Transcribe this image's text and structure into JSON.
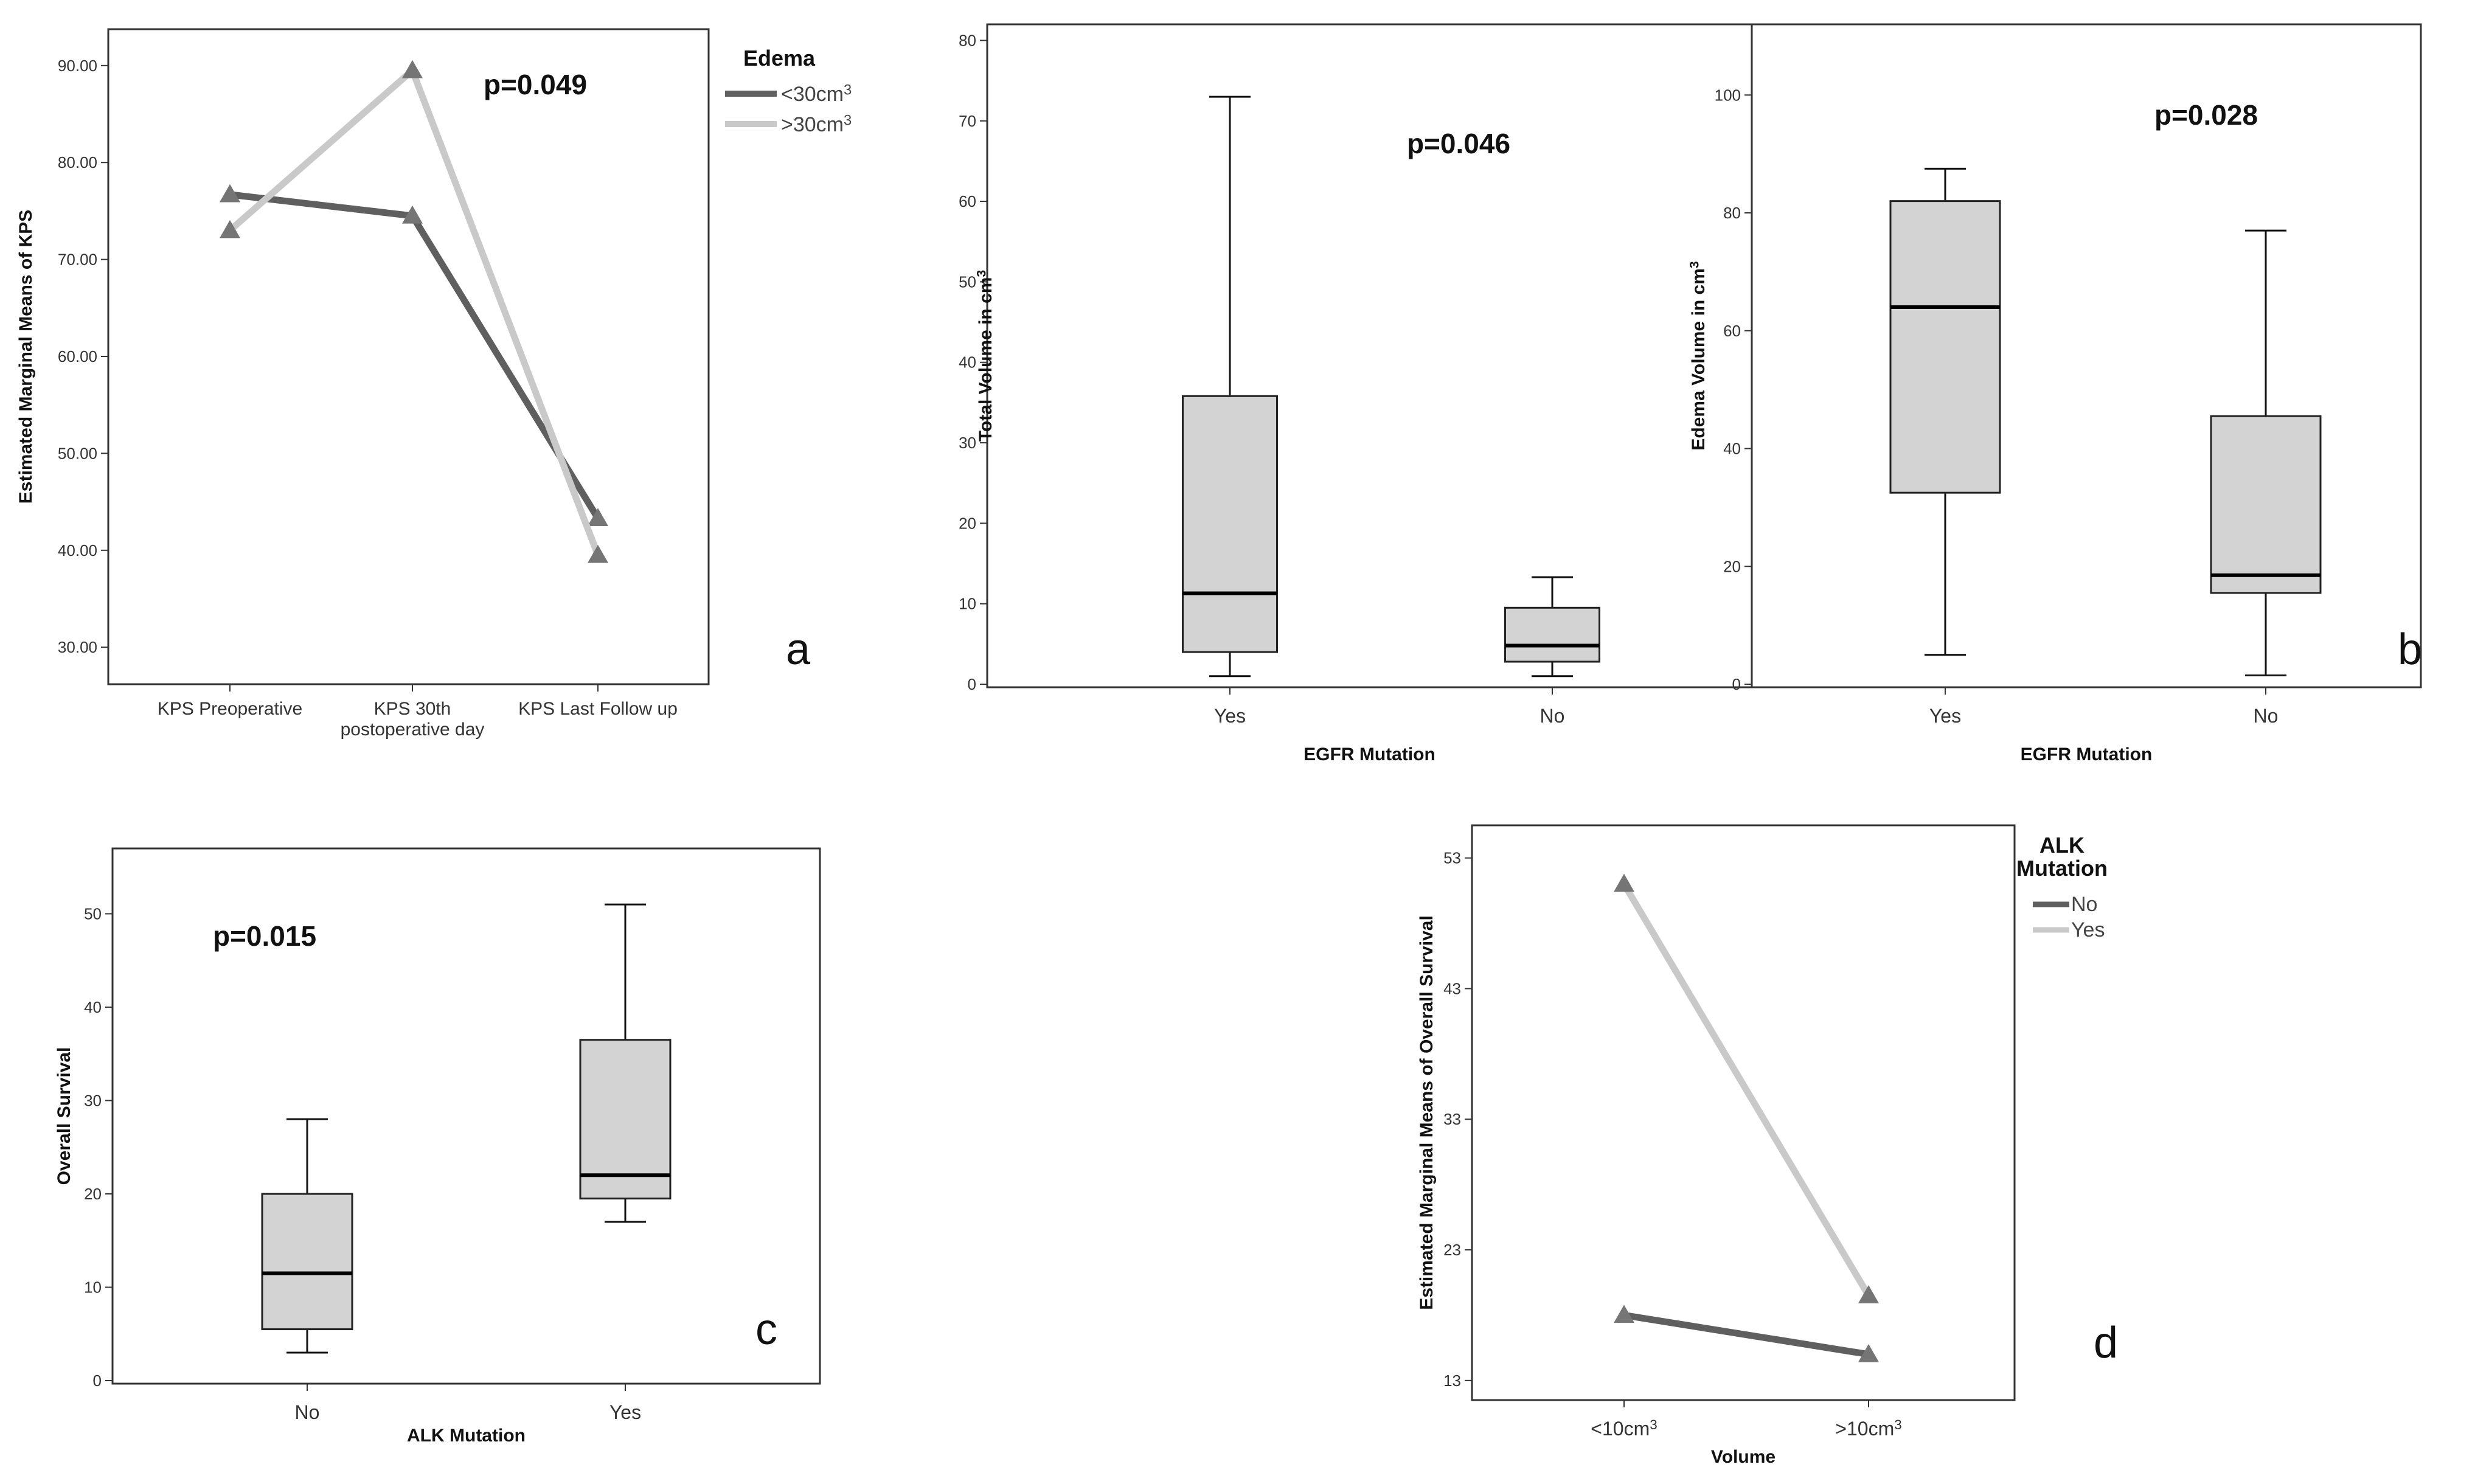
{
  "chart_data": [
    {
      "id": "a",
      "type": "line",
      "panel_label": "a",
      "title": "",
      "xlabel": "",
      "ylabel": "Estimated Marginal Means of KPS",
      "categories": [
        "KPS Preoperative",
        "KPS 30th postoperative day",
        "KPS Last Follow up"
      ],
      "category_lines": [
        [
          "KPS Preoperative"
        ],
        [
          "KPS 30th",
          "postoperative day"
        ],
        [
          "KPS Last Follow up"
        ]
      ],
      "ylim": [
        27,
        93
      ],
      "yticks": [
        30,
        40,
        50,
        60,
        70,
        80,
        90
      ],
      "ytick_labels": [
        "30.00",
        "40.00",
        "50.00",
        "60.00",
        "70.00",
        "80.00",
        "90.00"
      ],
      "annotation": "p=0.049",
      "legend_title": "Edema",
      "legend_position": "right",
      "series": [
        {
          "name": "<30cm",
          "sup": "3",
          "color": "#5f5f5f",
          "values": [
            76.7,
            74.5,
            43.3
          ]
        },
        {
          "name": ">30cm",
          "sup": "3",
          "color": "#c9c9c9",
          "values": [
            73.0,
            89.5,
            39.5
          ]
        }
      ]
    },
    {
      "id": "b1",
      "type": "box",
      "panel_label": "",
      "title": "",
      "xlabel": "EGFR Mutation",
      "ylabel": "Total Volume in cm",
      "ylabel_sup": "3",
      "categories": [
        "Yes",
        "No"
      ],
      "ylim": [
        0,
        82
      ],
      "yticks": [
        0,
        10,
        20,
        30,
        40,
        50,
        60,
        70,
        80
      ],
      "ytick_labels": [
        "0",
        "10",
        "20",
        "30",
        "40",
        "50",
        "60",
        "70",
        "80"
      ],
      "annotation": "p=0.046",
      "boxes": [
        {
          "category": "Yes",
          "min": 1,
          "q1": 4,
          "median": 11.3,
          "q3": 35.8,
          "max": 73
        },
        {
          "category": "No",
          "min": 1,
          "q1": 2.8,
          "median": 4.8,
          "q3": 9.5,
          "max": 13.3
        }
      ]
    },
    {
      "id": "b2",
      "type": "box",
      "panel_label": "b",
      "title": "",
      "xlabel": "EGFR Mutation",
      "ylabel": "Edema Volume in cm",
      "ylabel_sup": "3",
      "categories": [
        "Yes",
        "No"
      ],
      "ylim": [
        0,
        112
      ],
      "yticks": [
        0,
        20,
        40,
        60,
        80,
        100
      ],
      "ytick_labels": [
        "0",
        "20",
        "40",
        "60",
        "80",
        "100"
      ],
      "annotation": "p=0.028",
      "boxes": [
        {
          "category": "Yes",
          "min": 5,
          "q1": 32.5,
          "median": 64,
          "q3": 82,
          "max": 87.5
        },
        {
          "category": "No",
          "min": 1.5,
          "q1": 15.5,
          "median": 18.5,
          "q3": 45.5,
          "max": 77
        }
      ]
    },
    {
      "id": "c",
      "type": "box",
      "panel_label": "c",
      "title": "",
      "xlabel": "ALK Mutation",
      "ylabel": "Overall Survival",
      "categories": [
        "No",
        "Yes"
      ],
      "ylim": [
        0,
        57
      ],
      "yticks": [
        0,
        10,
        20,
        30,
        40,
        50
      ],
      "ytick_labels": [
        "0",
        "10",
        "20",
        "30",
        "40",
        "50"
      ],
      "annotation": "p=0.015",
      "boxes": [
        {
          "category": "No",
          "min": 3,
          "q1": 5.5,
          "median": 11.5,
          "q3": 20,
          "max": 28
        },
        {
          "category": "Yes",
          "min": 17,
          "q1": 19.5,
          "median": 22,
          "q3": 36.5,
          "max": 51
        }
      ]
    },
    {
      "id": "d",
      "type": "line",
      "panel_label": "d",
      "title": "",
      "xlabel": "Volume",
      "ylabel": "Estimated Marginal Means of Overall Survival",
      "categories": [
        "<10cm",
        ">10cm"
      ],
      "category_sup": "3",
      "ylim": [
        11.5,
        55.5
      ],
      "yticks": [
        13,
        23,
        33,
        43,
        53
      ],
      "ytick_labels": [
        "13",
        "23",
        "33",
        "43",
        "53"
      ],
      "annotation": "",
      "legend_title": "ALK Mutation",
      "legend_title_lines": [
        "ALK",
        "Mutation"
      ],
      "legend_position": "right",
      "series": [
        {
          "name": "No",
          "sup": "",
          "color": "#5f5f5f",
          "values": [
            18.0,
            15.0
          ]
        },
        {
          "name": "Yes",
          "sup": "",
          "color": "#c9c9c9",
          "values": [
            51.0,
            19.5
          ]
        }
      ]
    }
  ]
}
